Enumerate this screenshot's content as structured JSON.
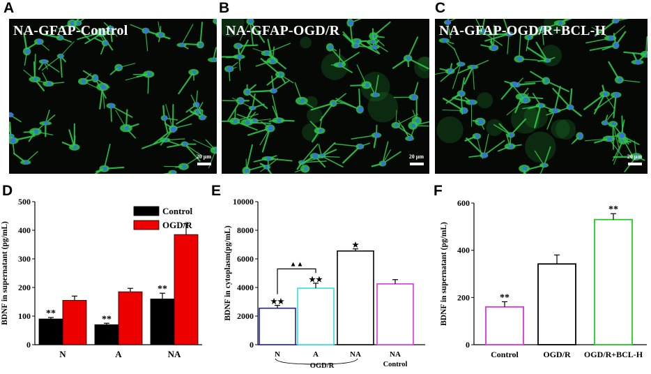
{
  "panels": {
    "A": {
      "letter": "A",
      "title": "NA-GFAP-Control",
      "scale": "20 μm"
    },
    "B": {
      "letter": "B",
      "title": "NA-GFAP-OGD/R",
      "scale": "20 μm"
    },
    "C": {
      "letter": "C",
      "title": "NA-GFAP-OGD/R+BCL-H",
      "scale": "20 μm"
    },
    "D": {
      "letter": "D"
    },
    "E": {
      "letter": "E"
    },
    "F": {
      "letter": "F"
    }
  },
  "colors": {
    "control_bar": "#000000",
    "ogdr_bar": "#ee0000",
    "blue": "#1f1fb4",
    "cyan": "#33dddd",
    "magenta": "#dd33dd",
    "green": "#22cc22",
    "cell_green": "#2ec84a",
    "nucleus_blue": "#3a6fe0"
  },
  "chart_data": [
    {
      "id": "D",
      "type": "bar",
      "categories": [
        "N",
        "A",
        "NA"
      ],
      "series": [
        {
          "name": "Control",
          "color": "#000000",
          "values": [
            90,
            70,
            160
          ],
          "errors": [
            5,
            5,
            20
          ],
          "marks": [
            "**",
            "**",
            "**"
          ]
        },
        {
          "name": "OGD/R",
          "color": "#ee0000",
          "values": [
            155,
            185,
            385
          ],
          "errors": [
            15,
            12,
            38
          ],
          "marks": [
            "",
            "",
            ""
          ]
        }
      ],
      "ylabel": "BDNF in supernatant (pg/mL)",
      "ylim": [
        0,
        500
      ],
      "yticks": [
        0,
        100,
        200,
        300,
        400,
        500
      ],
      "legend": "top-right"
    },
    {
      "id": "E",
      "type": "bar",
      "categories": [
        "N",
        "A",
        "NA",
        "NA"
      ],
      "values": [
        2550,
        3950,
        6550,
        4250
      ],
      "errors": [
        200,
        350,
        150,
        300
      ],
      "colors": [
        "#1f1fb4",
        "#33dddd",
        "#000000",
        "#dd33dd"
      ],
      "marks": [
        "★★",
        "★★",
        "★",
        ""
      ],
      "bracket_mark": "▲▲",
      "group_labels": [
        "OGD/R",
        "Control"
      ],
      "ylabel": "BDNF in cytoplasm(pg/mL)",
      "ylim": [
        0,
        10000
      ],
      "yticks": [
        0,
        2000,
        4000,
        6000,
        8000,
        10000
      ]
    },
    {
      "id": "F",
      "type": "bar",
      "categories": [
        "Control",
        "OGD/R",
        "OGD/R+BCL-H"
      ],
      "values": [
        160,
        342,
        530
      ],
      "errors": [
        22,
        38,
        25
      ],
      "colors": [
        "#dd33dd",
        "#000000",
        "#22cc22"
      ],
      "marks": [
        "**",
        "",
        "**"
      ],
      "ylabel": "BDNF in supernatant (pg/mL)",
      "ylim": [
        0,
        600
      ],
      "yticks": [
        0,
        200,
        400,
        600
      ]
    }
  ]
}
